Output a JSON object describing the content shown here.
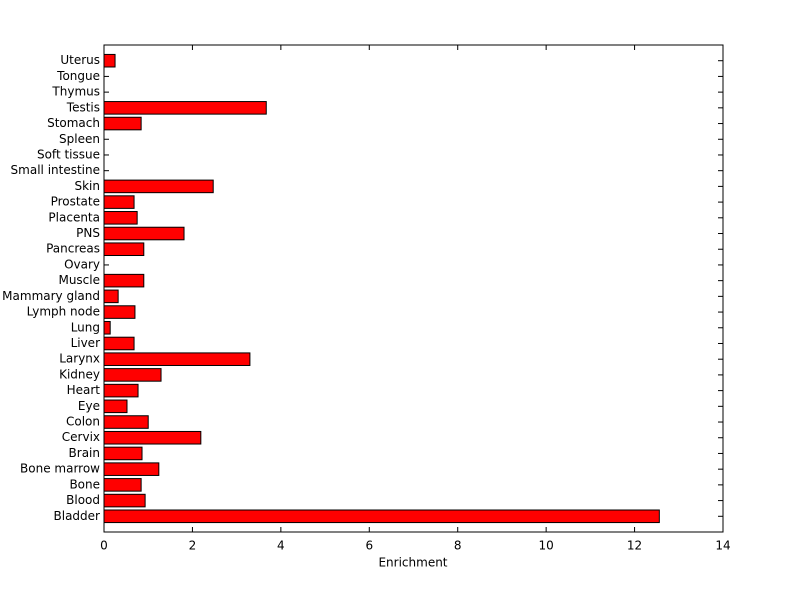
{
  "chart_data": {
    "type": "barh",
    "categories": [
      "Bladder",
      "Blood",
      "Bone",
      "Bone marrow",
      "Brain",
      "Cervix",
      "Colon",
      "Eye",
      "Heart",
      "Kidney",
      "Larynx",
      "Liver",
      "Lung",
      "Lymph node",
      "Mammary gland",
      "Muscle",
      "Ovary",
      "Pancreas",
      "PNS",
      "Placenta",
      "Prostate",
      "Skin",
      "Small intestine",
      "Soft tissue",
      "Spleen",
      "Stomach",
      "Testis",
      "Thymus",
      "Tongue",
      "Uterus"
    ],
    "values": [
      12.56,
      0.93,
      0.84,
      1.24,
      0.86,
      2.19,
      1.0,
      0.52,
      0.77,
      1.29,
      3.3,
      0.68,
      0.14,
      0.7,
      0.32,
      0.9,
      0,
      0.9,
      1.81,
      0.75,
      0.68,
      2.47,
      0,
      0,
      0,
      0.84,
      3.67,
      0,
      0,
      0.25
    ],
    "color": "#ff0000",
    "xlabel": "Enrichment",
    "xlim": [
      0,
      14
    ],
    "xticks": [
      0,
      2,
      4,
      6,
      8,
      10,
      12,
      14
    ]
  }
}
